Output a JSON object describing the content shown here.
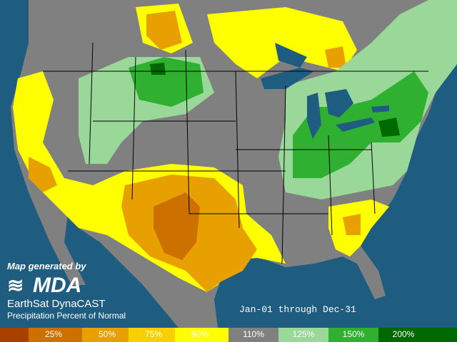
{
  "credit": {
    "prefix": "Map generated by",
    "logo": "MDA",
    "product": "EarthSat DynaCAST",
    "subtitle": "Precipitation Percent of Normal"
  },
  "period": "Jan-01 through Dec-31",
  "legend": {
    "colors": [
      "#a84000",
      "#cc7000",
      "#e8a000",
      "#f8d000",
      "#ffff00",
      "#808080",
      "#9ad89a",
      "#30b030",
      "#006800"
    ],
    "labels": [
      "25%",
      "50%",
      "75%",
      "90%",
      "110%",
      "125%",
      "150%",
      "200%"
    ]
  }
}
